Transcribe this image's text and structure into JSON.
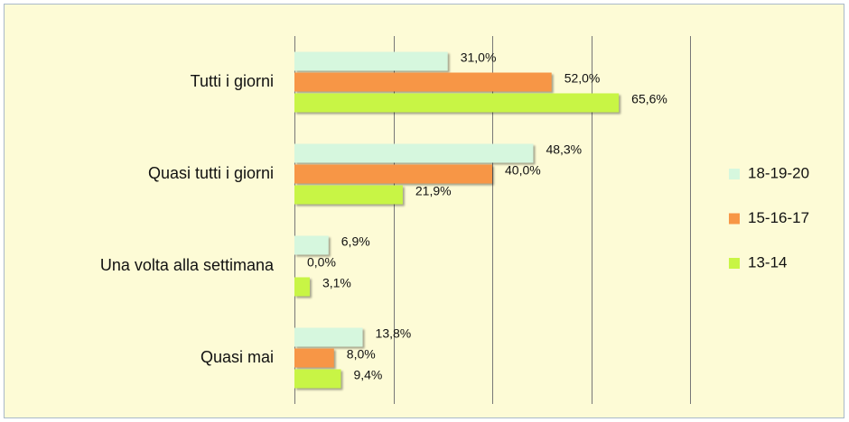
{
  "chart_data": {
    "type": "barh",
    "categories": [
      "Tutti i giorni",
      "Quasi tutti i giorni",
      "Una volta alla settimana",
      "Quasi mai"
    ],
    "series": [
      {
        "name": "18-19-20",
        "color": "#d6f7de",
        "values": [
          31.0,
          48.3,
          6.9,
          13.8
        ],
        "value_labels": [
          "31,0%",
          "48,3%",
          "6,9%",
          "13,8%"
        ]
      },
      {
        "name": "15-16-17",
        "color": "#f79646",
        "values": [
          52.0,
          40.0,
          0.0,
          8.0
        ],
        "value_labels": [
          "52,0%",
          "40,0%",
          "0,0%",
          "8,0%"
        ]
      },
      {
        "name": "13-14",
        "color": "#c8f545",
        "values": [
          65.6,
          21.9,
          3.1,
          9.4
        ],
        "value_labels": [
          "65,6%",
          "21,9%",
          "3,1%",
          "9,4%"
        ]
      }
    ],
    "xlim": [
      0,
      80
    ],
    "xticks": [
      0,
      20,
      40,
      60,
      80
    ],
    "grid": true,
    "legend": "right"
  }
}
